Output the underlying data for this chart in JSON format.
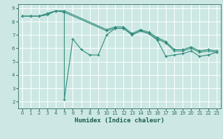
{
  "xlabel": "Humidex (Indice chaleur)",
  "bg_color": "#cde8e4",
  "grid_color": "#ffffff",
  "line_color": "#2e8b7a",
  "xlim": [
    -0.5,
    23.5
  ],
  "ylim": [
    1.5,
    9.3
  ],
  "xticks": [
    0,
    1,
    2,
    3,
    4,
    5,
    6,
    7,
    8,
    9,
    10,
    11,
    12,
    13,
    14,
    15,
    16,
    17,
    18,
    19,
    20,
    21,
    22,
    23
  ],
  "yticks": [
    2,
    3,
    4,
    5,
    6,
    7,
    8,
    9
  ],
  "series": [
    {
      "x": [
        0,
        1,
        2,
        3,
        4,
        5,
        5,
        6,
        7,
        8,
        9,
        10,
        11,
        12,
        13,
        14,
        15,
        16,
        17,
        18,
        19,
        20,
        21,
        22,
        23
      ],
      "y": [
        8.4,
        8.4,
        8.4,
        8.6,
        8.8,
        8.8,
        2.2,
        6.7,
        5.9,
        5.5,
        5.5,
        7.0,
        7.5,
        7.5,
        7.0,
        7.3,
        7.1,
        6.6,
        5.4,
        5.5,
        5.6,
        5.8,
        5.4,
        5.5,
        5.7
      ]
    },
    {
      "x": [
        0,
        1,
        2,
        3,
        4,
        5,
        10,
        11,
        12,
        13,
        14,
        15,
        16,
        17,
        18,
        19,
        20,
        21,
        22,
        23
      ],
      "y": [
        8.4,
        8.4,
        8.4,
        8.6,
        8.8,
        8.8,
        7.4,
        7.6,
        7.6,
        7.1,
        7.4,
        7.2,
        6.8,
        6.5,
        5.9,
        5.9,
        6.1,
        5.8,
        5.9,
        5.8
      ]
    },
    {
      "x": [
        0,
        1,
        2,
        3,
        4,
        5,
        10,
        11,
        12,
        13,
        14,
        15,
        16,
        17,
        18,
        19,
        20,
        21,
        22,
        23
      ],
      "y": [
        8.4,
        8.4,
        8.4,
        8.5,
        8.8,
        8.7,
        7.3,
        7.5,
        7.5,
        7.0,
        7.3,
        7.1,
        6.7,
        6.4,
        5.8,
        5.8,
        6.0,
        5.7,
        5.8,
        5.7
      ]
    }
  ],
  "tick_color": "#2e6b60",
  "xlabel_color": "#1a5a50",
  "tick_fontsize": 5.0,
  "xlabel_fontsize": 6.5
}
